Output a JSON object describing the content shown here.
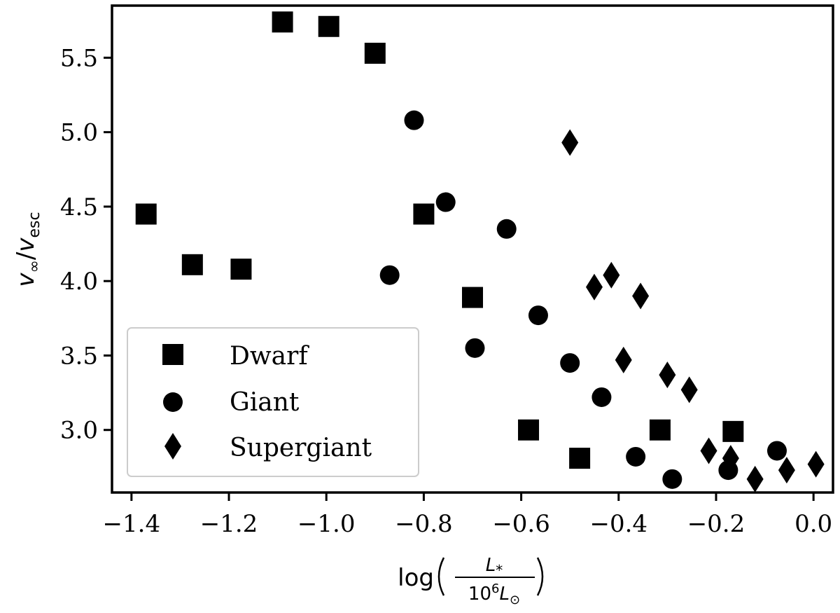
{
  "chart_data": {
    "type": "scatter",
    "xlim": [
      -1.44,
      0.04
    ],
    "ylim": [
      2.58,
      5.85
    ],
    "xticks": [
      -1.4,
      -1.2,
      -1.0,
      -0.8,
      -0.6,
      -0.4,
      -0.2,
      0.0
    ],
    "xtick_labels": [
      "−1.4",
      "−1.2",
      "−1.0",
      "−0.8",
      "−0.6",
      "−0.4",
      "−0.2",
      "0.0"
    ],
    "yticks": [
      3.0,
      3.5,
      4.0,
      4.5,
      5.0,
      5.5
    ],
    "ytick_labels": [
      "3.0",
      "3.5",
      "4.0",
      "4.5",
      "5.0",
      "5.5"
    ],
    "ylabel": {
      "v1": "v",
      "sub1": "∞",
      "slash": "/",
      "v2": "v",
      "sub2": "esc"
    },
    "xlabel": {
      "log": "log",
      "num_base": "L",
      "num_sub": "*",
      "den_base": "10",
      "den_sup": "6",
      "den_l": "L",
      "den_sub": "⊙"
    },
    "grid": false,
    "legend_position": "lower-left",
    "series": [
      {
        "name": "Dwarf",
        "marker": "square",
        "color": "#000000",
        "x": [
          -1.09,
          -0.995,
          -0.9,
          -1.37,
          -1.275,
          -1.175,
          -0.8,
          -0.7,
          -0.585,
          -0.48,
          -0.315,
          -0.165
        ],
        "y": [
          5.74,
          5.71,
          5.53,
          4.45,
          4.11,
          4.08,
          4.45,
          3.89,
          3.0,
          2.81,
          3.0,
          2.99
        ]
      },
      {
        "name": "Giant",
        "marker": "circle",
        "color": "#000000",
        "x": [
          -0.82,
          -0.755,
          -0.63,
          -0.87,
          -0.565,
          -0.695,
          -0.5,
          -0.435,
          -0.365,
          -0.29,
          -0.175,
          -0.075
        ],
        "y": [
          5.08,
          4.53,
          4.35,
          4.04,
          3.77,
          3.55,
          3.45,
          3.22,
          2.82,
          2.67,
          2.73,
          2.86
        ]
      },
      {
        "name": "Supergiant",
        "marker": "diamond",
        "color": "#000000",
        "x": [
          -0.5,
          -0.45,
          -0.415,
          -0.355,
          -0.39,
          -0.3,
          -0.255,
          -0.215,
          -0.17,
          -0.12,
          -0.055,
          0.005
        ],
        "y": [
          4.93,
          3.96,
          4.04,
          3.9,
          3.47,
          3.37,
          3.27,
          2.86,
          2.81,
          2.67,
          2.73,
          2.77
        ]
      }
    ]
  }
}
